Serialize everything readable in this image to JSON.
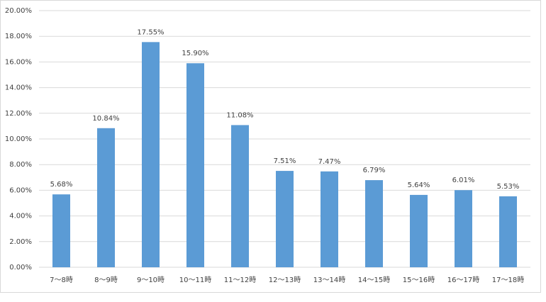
{
  "chart_data": {
    "type": "bar",
    "categories": [
      "7〜8時",
      "8〜9時",
      "9〜10時",
      "10〜11時",
      "11〜12時",
      "12〜13時",
      "13〜14時",
      "14〜15時",
      "15〜16時",
      "16〜17時",
      "17〜18時"
    ],
    "values": [
      5.68,
      10.84,
      17.55,
      15.9,
      11.08,
      7.51,
      7.47,
      6.79,
      5.64,
      6.01,
      5.53
    ],
    "value_labels": [
      "5.68%",
      "10.84%",
      "17.55%",
      "15.90%",
      "11.08%",
      "7.51%",
      "7.47%",
      "6.79%",
      "5.64%",
      "6.01%",
      "5.53%"
    ],
    "color": "#5b9bd5",
    "ylim": [
      0,
      20
    ],
    "yticks": [
      {
        "value": 0,
        "label": "0.00%"
      },
      {
        "value": 2,
        "label": "2.00%"
      },
      {
        "value": 4,
        "label": "4.00%"
      },
      {
        "value": 6,
        "label": "6.00%"
      },
      {
        "value": 8,
        "label": "8.00%"
      },
      {
        "value": 10,
        "label": "10.00%"
      },
      {
        "value": 12,
        "label": "12.00%"
      },
      {
        "value": 14,
        "label": "14.00%"
      },
      {
        "value": 16,
        "label": "16.00%"
      },
      {
        "value": 18,
        "label": "18.00%"
      },
      {
        "value": 20,
        "label": "20.00%"
      }
    ],
    "grid": true
  }
}
